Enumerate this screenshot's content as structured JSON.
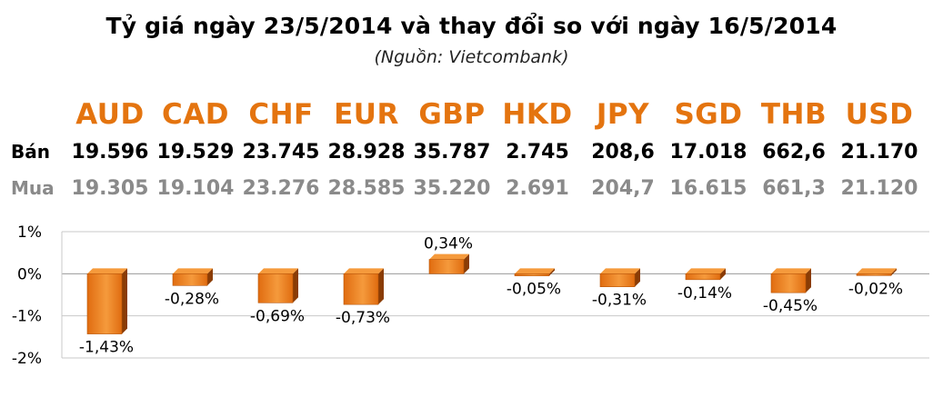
{
  "title": "Tỷ giá ngày 23/5/2014 và thay đổi so với ngày 16/5/2014",
  "subtitle": "(Nguồn: Vietcombank)",
  "table": {
    "sell_label": "Bán",
    "buy_label": "Mua",
    "columns": [
      {
        "code": "AUD",
        "sell": "19.596",
        "buy": "19.305"
      },
      {
        "code": "CAD",
        "sell": "19.529",
        "buy": "19.104"
      },
      {
        "code": "CHF",
        "sell": "23.745",
        "buy": "23.276"
      },
      {
        "code": "EUR",
        "sell": "28.928",
        "buy": "28.585"
      },
      {
        "code": "GBP",
        "sell": "35.787",
        "buy": "35.220"
      },
      {
        "code": "HKD",
        "sell": "2.745",
        "buy": "2.691"
      },
      {
        "code": "JPY",
        "sell": "208,6",
        "buy": "204,7"
      },
      {
        "code": "SGD",
        "sell": "17.018",
        "buy": "16.615"
      },
      {
        "code": "THB",
        "sell": "662,6",
        "buy": "661,3"
      },
      {
        "code": "USD",
        "sell": "21.170",
        "buy": "21.120"
      }
    ]
  },
  "chart_data": {
    "type": "bar",
    "title": "",
    "xlabel": "",
    "ylabel": "",
    "categories": [
      "AUD",
      "CAD",
      "CHF",
      "EUR",
      "GBP",
      "HKD",
      "JPY",
      "SGD",
      "THB",
      "USD"
    ],
    "values": [
      -1.43,
      -0.28,
      -0.69,
      -0.73,
      0.34,
      -0.05,
      -0.31,
      -0.14,
      -0.45,
      -0.02
    ],
    "data_labels": [
      "-1,43%",
      "-0,28%",
      "-0,69%",
      "-0,73%",
      "0,34%",
      "-0,05%",
      "-0,31%",
      "-0,14%",
      "-0,45%",
      "-0,02%"
    ],
    "y_ticks": [
      1,
      0,
      -1,
      -2
    ],
    "y_tick_labels": [
      "1%",
      "0%",
      "-1%",
      "-2%"
    ],
    "ylim": [
      -2,
      1
    ],
    "grid": true,
    "legend": "none",
    "colors": {
      "bar_front": "#e06c10",
      "bar_dark": "#8a3c05",
      "bar_light": "#f59a3c",
      "code_text": "#e4740f",
      "grid": "#c8c8c8",
      "axis": "#999999"
    }
  }
}
